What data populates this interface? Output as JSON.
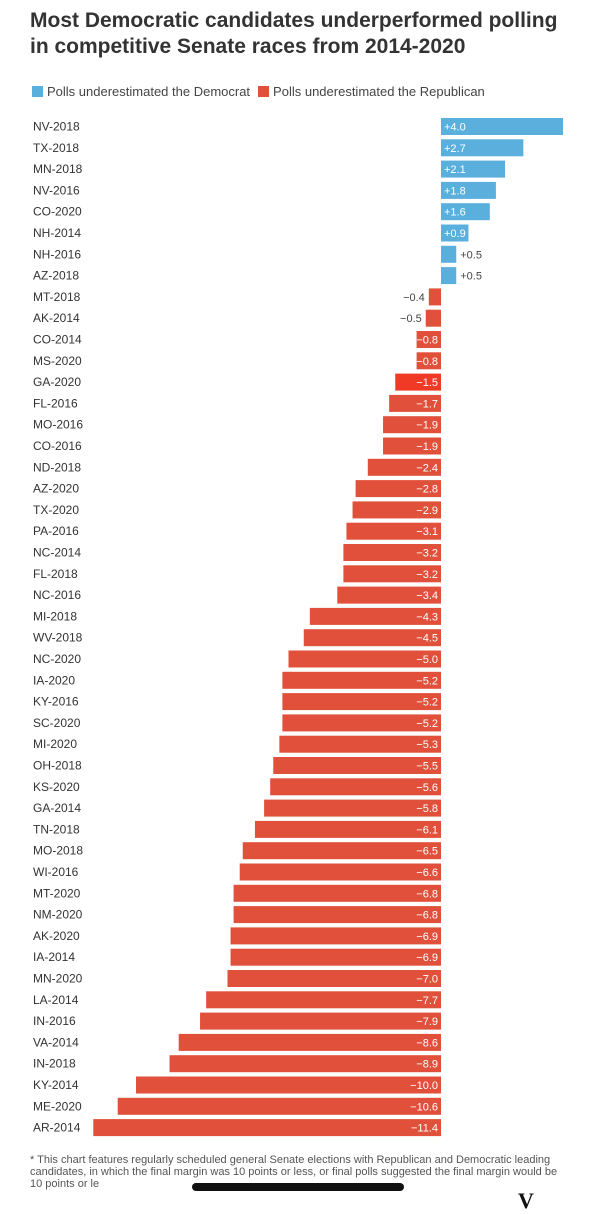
{
  "header": {
    "title": "Most Democratic candidates underperformed polling in competitive Senate races from 2014-2020"
  },
  "legend": {
    "items": [
      {
        "label": "Polls underestimated the Democrat",
        "color": "#5aafdc"
      },
      {
        "label": "Polls underestimated the Republican",
        "color": "#e0503a"
      }
    ]
  },
  "colors": {
    "democrat": "#5aafdc",
    "republican": "#e0503a",
    "highlight": "#f03a25"
  },
  "chart_data": {
    "type": "bar",
    "orientation": "horizontal",
    "title": "Most Democratic candidates underperformed polling in competitive Senate races from 2014-2020",
    "xlabel": "",
    "ylabel": "",
    "categories": [
      "NV-2018",
      "TX-2018",
      "MN-2018",
      "NV-2016",
      "CO-2020",
      "NH-2014",
      "NH-2016",
      "AZ-2018",
      "MT-2018",
      "AK-2014",
      "CO-2014",
      "MS-2020",
      "GA-2020",
      "FL-2016",
      "MO-2016",
      "CO-2016",
      "ND-2018",
      "AZ-2020",
      "TX-2020",
      "PA-2016",
      "NC-2014",
      "FL-2018",
      "NC-2016",
      "MI-2018",
      "WV-2018",
      "NC-2020",
      "IA-2020",
      "KY-2016",
      "SC-2020",
      "MI-2020",
      "OH-2018",
      "KS-2020",
      "GA-2014",
      "TN-2018",
      "MO-2018",
      "WI-2016",
      "MT-2020",
      "NM-2020",
      "AK-2020",
      "IA-2014",
      "MN-2020",
      "LA-2014",
      "IN-2016",
      "VA-2014",
      "IN-2018",
      "KY-2014",
      "ME-2020",
      "AR-2014"
    ],
    "values": [
      4.0,
      2.7,
      2.1,
      1.8,
      1.6,
      0.9,
      0.5,
      0.5,
      -0.4,
      -0.5,
      -0.8,
      -0.8,
      -1.5,
      -1.7,
      -1.9,
      -1.9,
      -2.4,
      -2.8,
      -2.9,
      -3.1,
      -3.2,
      -3.2,
      -3.4,
      -4.3,
      -4.5,
      -5.0,
      -5.2,
      -5.2,
      -5.2,
      -5.3,
      -5.5,
      -5.6,
      -5.8,
      -6.1,
      -6.5,
      -6.6,
      -6.8,
      -6.8,
      -6.9,
      -6.9,
      -7.0,
      -7.7,
      -7.9,
      -8.6,
      -8.9,
      -10.0,
      -10.6,
      -11.4
    ],
    "labels": [
      "+4.0",
      "+2.7",
      "+2.1",
      "+1.8",
      "+1.6",
      "+0.9",
      "+0.5",
      "+0.5",
      "−0.4",
      "−0.5",
      "−0.8",
      "−0.8",
      "−1.5",
      "−1.7",
      "−1.9",
      "−1.9",
      "−2.4",
      "−2.8",
      "−2.9",
      "−3.1",
      "−3.2",
      "−3.2",
      "−3.4",
      "−4.3",
      "−4.5",
      "−5.0",
      "−5.2",
      "−5.2",
      "−5.2",
      "−5.3",
      "−5.5",
      "−5.6",
      "−5.8",
      "−6.1",
      "−6.5",
      "−6.6",
      "−6.8",
      "−6.8",
      "−6.9",
      "−6.9",
      "−7.0",
      "−7.7",
      "−7.9",
      "−8.6",
      "−8.9",
      "−10.0",
      "−10.6",
      "−11.4"
    ],
    "highlighted": [
      "GA-2020"
    ],
    "xlim": [
      -11.4,
      4.0
    ],
    "grid": false,
    "legend_position": "top"
  },
  "footnote": "* This chart features regularly scheduled general Senate elections with Republican and Democratic leading candidates, in which the final margin was 10 points or less, or final polls suggested the final margin would be 10 points or le"
}
